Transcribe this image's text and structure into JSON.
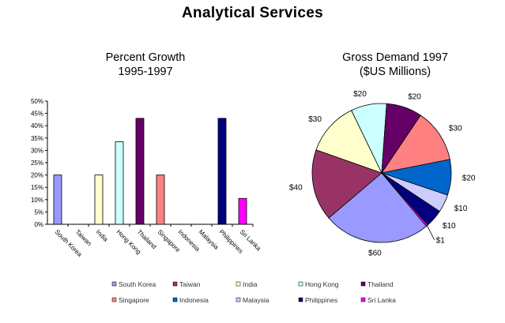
{
  "title": "Analytical Services",
  "chart_data": [
    {
      "type": "bar",
      "title_lines": [
        "Percent Growth",
        "1995-1997"
      ],
      "categories": [
        "South Korea",
        "Taiwan",
        "India",
        "Hong Kong",
        "Thailand",
        "Singapore",
        "Indonesia",
        "Malaysia",
        "Philippines",
        "Sri Lanka"
      ],
      "values": [
        20,
        0,
        20,
        33.5,
        43,
        20,
        0,
        0,
        43,
        10.5
      ],
      "colors": [
        "#9999ff",
        "#993366",
        "#ffffcc",
        "#ccffff",
        "#660066",
        "#ff8080",
        "#0066cc",
        "#ccccff",
        "#000080",
        "#ff00ff"
      ],
      "ylim": [
        0,
        50
      ],
      "yticks": [
        "0%",
        "5%",
        "10%",
        "15%",
        "20%",
        "25%",
        "30%",
        "35%",
        "40%",
        "45%",
        "50%"
      ],
      "grid": false
    },
    {
      "type": "pie",
      "title_lines": [
        "Gross Demand 1997",
        "($US Millions)"
      ],
      "categories": [
        "South Korea",
        "Taiwan",
        "India",
        "Hong Kong",
        "Thailand",
        "Singapore",
        "Indonesia",
        "Malaysia",
        "Philippines",
        "Sri Lanka"
      ],
      "values": [
        60,
        40,
        30,
        20,
        20,
        30,
        20,
        10,
        10,
        1
      ],
      "value_labels": [
        "$60",
        "$40",
        "$30",
        "$20",
        "$20",
        "$30",
        "$20",
        "$10",
        "$10",
        "$1"
      ],
      "colors": [
        "#9999ff",
        "#993366",
        "#ffffcc",
        "#ccffff",
        "#660066",
        "#ff8080",
        "#0066cc",
        "#ccccff",
        "#000080",
        "#ff00ff"
      ]
    }
  ],
  "legend": {
    "placement": "bottom",
    "items": [
      "South Korea",
      "Taiwan",
      "India",
      "Hong Kong",
      "Thailand",
      "Singapore",
      "Indonesia",
      "Malaysia",
      "Philippines",
      "Sri Lanka"
    ]
  }
}
